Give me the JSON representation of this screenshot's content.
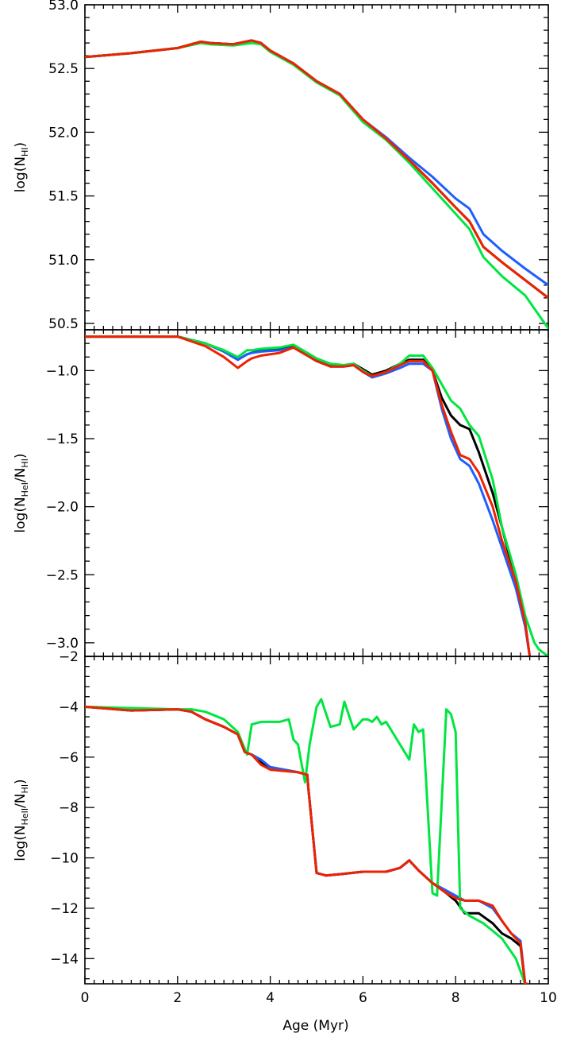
{
  "chart_data": [
    {
      "type": "line",
      "ylabel": {
        "base": "log(N",
        "sub": "HI",
        "end": ")"
      },
      "xlim": [
        0,
        10
      ],
      "ylim": [
        50.45,
        53.0
      ],
      "yticks": [
        "53.0",
        "52.5",
        "52.0",
        "51.5",
        "51.0",
        "50.5"
      ],
      "ytick_values": [
        53.0,
        52.5,
        52.0,
        51.5,
        51.0,
        50.5
      ],
      "series": [
        {
          "color": "#000000",
          "x": [
            0,
            1,
            2,
            2.5,
            2.7,
            3.2,
            3.6,
            3.8,
            4.0,
            4.5,
            5.0,
            5.5,
            6.0,
            6.5,
            7.0,
            7.5,
            8.0,
            8.3,
            8.6,
            9.0,
            9.5,
            10.0
          ],
          "y": [
            52.59,
            52.62,
            52.66,
            52.71,
            52.7,
            52.69,
            52.72,
            52.7,
            52.64,
            52.54,
            52.4,
            52.3,
            52.1,
            51.95,
            51.78,
            51.6,
            51.41,
            51.3,
            51.1,
            50.98,
            50.84,
            50.7
          ]
        },
        {
          "color": "#1f5fff",
          "x": [
            0,
            1,
            2,
            2.5,
            2.7,
            3.2,
            3.6,
            3.8,
            4.0,
            4.5,
            5.0,
            5.5,
            6.0,
            6.5,
            7.0,
            7.5,
            8.0,
            8.3,
            8.6,
            9.0,
            9.5,
            10.0
          ],
          "y": [
            52.59,
            52.62,
            52.66,
            52.71,
            52.7,
            52.69,
            52.72,
            52.7,
            52.64,
            52.54,
            52.4,
            52.3,
            52.1,
            51.96,
            51.8,
            51.65,
            51.48,
            51.4,
            51.2,
            51.07,
            50.93,
            50.8
          ]
        },
        {
          "color": "#00e640",
          "x": [
            0,
            1,
            2,
            2.5,
            2.7,
            3.2,
            3.6,
            3.8,
            4.0,
            4.5,
            5.0,
            5.5,
            6.0,
            6.5,
            7.0,
            7.5,
            8.0,
            8.3,
            8.6,
            9.0,
            9.5,
            10.0
          ],
          "y": [
            52.59,
            52.62,
            52.66,
            52.7,
            52.69,
            52.68,
            52.7,
            52.69,
            52.63,
            52.53,
            52.39,
            52.29,
            52.08,
            51.94,
            51.76,
            51.56,
            51.36,
            51.24,
            51.02,
            50.87,
            50.72,
            50.46
          ]
        },
        {
          "color": "#ee2200",
          "x": [
            0,
            1,
            2,
            2.5,
            2.7,
            3.2,
            3.6,
            3.8,
            4.0,
            4.5,
            5.0,
            5.5,
            6.0,
            6.5,
            7.0,
            7.5,
            8.0,
            8.3,
            8.6,
            9.0,
            9.5,
            10.0
          ],
          "y": [
            52.59,
            52.62,
            52.66,
            52.71,
            52.7,
            52.69,
            52.72,
            52.7,
            52.64,
            52.54,
            52.4,
            52.3,
            52.1,
            51.95,
            51.78,
            51.6,
            51.41,
            51.3,
            51.1,
            50.98,
            50.84,
            50.7
          ]
        }
      ]
    },
    {
      "type": "line",
      "ylabel": {
        "base": "log(N",
        "sub": "HeI",
        "end": "/N",
        "sub2": "HI",
        "end2": ")"
      },
      "xlim": [
        0,
        10
      ],
      "ylim": [
        -3.1,
        -0.7
      ],
      "yticks": [
        "−1.0",
        "−1.5",
        "−2.0",
        "−2.5",
        "−3.0"
      ],
      "ytick_values": [
        -1.0,
        -1.5,
        -2.0,
        -2.5,
        -3.0
      ],
      "series": [
        {
          "color": "#000000",
          "x": [
            0,
            2.0,
            2.6,
            3.0,
            3.3,
            3.5,
            3.6,
            3.8,
            4.2,
            4.5,
            4.8,
            5.0,
            5.3,
            5.6,
            5.8,
            6.0,
            6.2,
            6.5,
            6.8,
            7.0,
            7.3,
            7.5,
            7.7,
            7.9,
            8.1,
            8.3,
            8.5,
            8.8,
            9.0,
            9.3,
            9.5,
            9.6,
            9.7
          ],
          "y": [
            -0.75,
            -0.75,
            -0.8,
            -0.86,
            -0.92,
            -0.88,
            -0.87,
            -0.85,
            -0.84,
            -0.82,
            -0.88,
            -0.92,
            -0.96,
            -0.96,
            -0.95,
            -0.99,
            -1.03,
            -1.0,
            -0.95,
            -0.92,
            -0.92,
            -1.0,
            -1.2,
            -1.33,
            -1.4,
            -1.43,
            -1.6,
            -1.9,
            -2.15,
            -2.55,
            -2.85,
            -3.1,
            -3.2
          ]
        },
        {
          "color": "#1f5fff",
          "x": [
            0,
            2.0,
            2.6,
            3.0,
            3.3,
            3.5,
            3.6,
            3.8,
            4.2,
            4.5,
            4.8,
            5.0,
            5.3,
            5.6,
            5.8,
            6.0,
            6.2,
            6.5,
            6.8,
            7.0,
            7.3,
            7.5,
            7.7,
            7.9,
            8.1,
            8.3,
            8.5,
            8.8,
            9.0,
            9.3,
            9.5,
            9.6,
            9.7
          ],
          "y": [
            -0.75,
            -0.75,
            -0.8,
            -0.86,
            -0.92,
            -0.88,
            -0.87,
            -0.86,
            -0.85,
            -0.83,
            -0.89,
            -0.93,
            -0.97,
            -0.97,
            -0.96,
            -1.01,
            -1.05,
            -1.02,
            -0.98,
            -0.95,
            -0.95,
            -1.0,
            -1.28,
            -1.5,
            -1.65,
            -1.7,
            -1.83,
            -2.1,
            -2.3,
            -2.6,
            -2.88,
            -3.1,
            -3.2
          ]
        },
        {
          "color": "#00e640",
          "x": [
            0,
            2.0,
            2.6,
            3.0,
            3.3,
            3.5,
            3.6,
            3.8,
            4.2,
            4.5,
            4.8,
            5.0,
            5.3,
            5.6,
            5.8,
            6.0,
            6.2,
            6.5,
            6.8,
            7.0,
            7.3,
            7.5,
            7.7,
            7.9,
            8.1,
            8.3,
            8.5,
            8.8,
            9.0,
            9.3,
            9.5,
            9.7,
            9.8,
            10.0
          ],
          "y": [
            -0.75,
            -0.75,
            -0.8,
            -0.85,
            -0.9,
            -0.85,
            -0.85,
            -0.84,
            -0.83,
            -0.81,
            -0.87,
            -0.91,
            -0.95,
            -0.96,
            -0.95,
            -1.0,
            -1.04,
            -1.01,
            -0.95,
            -0.89,
            -0.89,
            -0.98,
            -1.1,
            -1.22,
            -1.28,
            -1.4,
            -1.48,
            -1.8,
            -2.15,
            -2.5,
            -2.8,
            -3.0,
            -3.05,
            -3.1
          ]
        },
        {
          "color": "#ee2200",
          "x": [
            0,
            2.0,
            2.6,
            3.0,
            3.3,
            3.5,
            3.6,
            3.8,
            4.2,
            4.5,
            4.8,
            5.0,
            5.3,
            5.6,
            5.8,
            6.0,
            6.2,
            6.5,
            6.8,
            7.0,
            7.3,
            7.5,
            7.7,
            7.9,
            8.1,
            8.3,
            8.5,
            8.8,
            9.0,
            9.3,
            9.5,
            9.6,
            9.7
          ],
          "y": [
            -0.75,
            -0.75,
            -0.82,
            -0.9,
            -0.98,
            -0.93,
            -0.91,
            -0.89,
            -0.87,
            -0.83,
            -0.89,
            -0.93,
            -0.97,
            -0.97,
            -0.96,
            -1.01,
            -1.04,
            -1.01,
            -0.96,
            -0.93,
            -0.93,
            -1.0,
            -1.25,
            -1.45,
            -1.62,
            -1.65,
            -1.75,
            -2.0,
            -2.25,
            -2.55,
            -2.85,
            -3.1,
            -3.2
          ]
        }
      ]
    },
    {
      "type": "line",
      "ylabel": {
        "base": "log(N",
        "sub": "HeII",
        "end": "/N",
        "sub2": "HI",
        "end2": ")"
      },
      "xlabel": "Age (Myr)",
      "xlim": [
        0,
        10
      ],
      "xticks": [
        "0",
        "2",
        "4",
        "6",
        "8",
        "10"
      ],
      "xtick_values": [
        0,
        2,
        4,
        6,
        8,
        10
      ],
      "ylim": [
        -15,
        -2
      ],
      "yticks": [
        "−2",
        "−4",
        "−6",
        "−8",
        "−10",
        "−12",
        "−14"
      ],
      "ytick_values": [
        -2,
        -4,
        -6,
        -8,
        -10,
        -12,
        -14
      ],
      "series": [
        {
          "color": "#000000",
          "x": [
            0,
            1,
            2,
            2.3,
            2.6,
            3.0,
            3.3,
            3.45,
            3.6,
            3.8,
            4.0,
            4.3,
            4.6,
            4.8,
            4.82,
            5.0,
            5.2,
            5.5,
            6.0,
            6.5,
            6.8,
            7.0,
            7.2,
            7.5,
            7.8,
            8.0,
            8.2,
            8.5,
            8.8,
            9.0,
            9.2,
            9.4,
            9.5,
            9.55
          ],
          "y": [
            -4.0,
            -4.15,
            -4.1,
            -4.2,
            -4.5,
            -4.8,
            -5.1,
            -5.8,
            -5.9,
            -6.2,
            -6.4,
            -6.5,
            -6.6,
            -6.7,
            -7.2,
            -10.6,
            -10.7,
            -10.65,
            -10.55,
            -10.55,
            -10.4,
            -10.1,
            -10.5,
            -11.0,
            -11.4,
            -11.7,
            -12.2,
            -12.2,
            -12.6,
            -13.0,
            -13.2,
            -13.5,
            -15.0,
            -15.0
          ]
        },
        {
          "color": "#1f5fff",
          "x": [
            0,
            1,
            2,
            2.3,
            2.6,
            3.0,
            3.3,
            3.45,
            3.6,
            3.8,
            4.0,
            4.3,
            4.6,
            4.8,
            4.82,
            5.0,
            5.2,
            5.5,
            6.0,
            6.5,
            6.8,
            7.0,
            7.2,
            7.5,
            7.8,
            8.0,
            8.2,
            8.5,
            8.8,
            9.0,
            9.2,
            9.4,
            9.5,
            9.55
          ],
          "y": [
            -4.0,
            -4.15,
            -4.1,
            -4.2,
            -4.5,
            -4.8,
            -5.1,
            -5.8,
            -5.9,
            -6.1,
            -6.4,
            -6.5,
            -6.6,
            -6.7,
            -7.2,
            -10.6,
            -10.7,
            -10.65,
            -10.55,
            -10.55,
            -10.4,
            -10.1,
            -10.5,
            -11.0,
            -11.3,
            -11.5,
            -11.7,
            -11.7,
            -12.0,
            -12.5,
            -13.0,
            -13.3,
            -15.0,
            -15.0
          ]
        },
        {
          "color": "#00e640",
          "x": [
            0,
            2,
            2.3,
            2.6,
            3.0,
            3.3,
            3.5,
            3.6,
            3.8,
            4.0,
            4.2,
            4.4,
            4.5,
            4.6,
            4.75,
            4.85,
            5.0,
            5.1,
            5.3,
            5.5,
            5.6,
            5.8,
            6.0,
            6.1,
            6.2,
            6.3,
            6.4,
            6.5,
            6.7,
            7.0,
            7.1,
            7.2,
            7.3,
            7.5,
            7.6,
            7.8,
            7.9,
            8.0,
            8.1,
            8.3,
            8.6,
            9.0,
            9.3,
            9.5
          ],
          "y": [
            -4.0,
            -4.1,
            -4.1,
            -4.2,
            -4.5,
            -5.0,
            -5.9,
            -4.7,
            -4.6,
            -4.6,
            -4.6,
            -4.5,
            -5.3,
            -5.5,
            -7.0,
            -5.5,
            -4.0,
            -3.7,
            -4.8,
            -4.7,
            -3.8,
            -4.9,
            -4.5,
            -4.5,
            -4.6,
            -4.4,
            -4.7,
            -4.6,
            -5.2,
            -6.1,
            -4.7,
            -5.0,
            -4.9,
            -11.4,
            -11.5,
            -4.1,
            -4.3,
            -5.0,
            -12.0,
            -12.3,
            -12.6,
            -13.2,
            -14.0,
            -15.0
          ]
        },
        {
          "color": "#ee2200",
          "x": [
            0,
            1,
            2,
            2.3,
            2.6,
            3.0,
            3.3,
            3.45,
            3.6,
            3.8,
            4.0,
            4.3,
            4.6,
            4.8,
            4.82,
            5.0,
            5.2,
            5.5,
            6.0,
            6.5,
            6.8,
            7.0,
            7.2,
            7.5,
            7.8,
            8.0,
            8.2,
            8.5,
            8.8,
            9.0,
            9.2,
            9.4,
            9.5,
            9.55
          ],
          "y": [
            -4.0,
            -4.15,
            -4.1,
            -4.2,
            -4.5,
            -4.8,
            -5.1,
            -5.8,
            -5.9,
            -6.3,
            -6.5,
            -6.55,
            -6.6,
            -6.7,
            -7.2,
            -10.6,
            -10.7,
            -10.65,
            -10.55,
            -10.55,
            -10.4,
            -10.1,
            -10.5,
            -11.0,
            -11.4,
            -11.6,
            -11.7,
            -11.7,
            -11.9,
            -12.5,
            -13.0,
            -13.4,
            -15.0,
            -15.0
          ]
        }
      ]
    }
  ]
}
